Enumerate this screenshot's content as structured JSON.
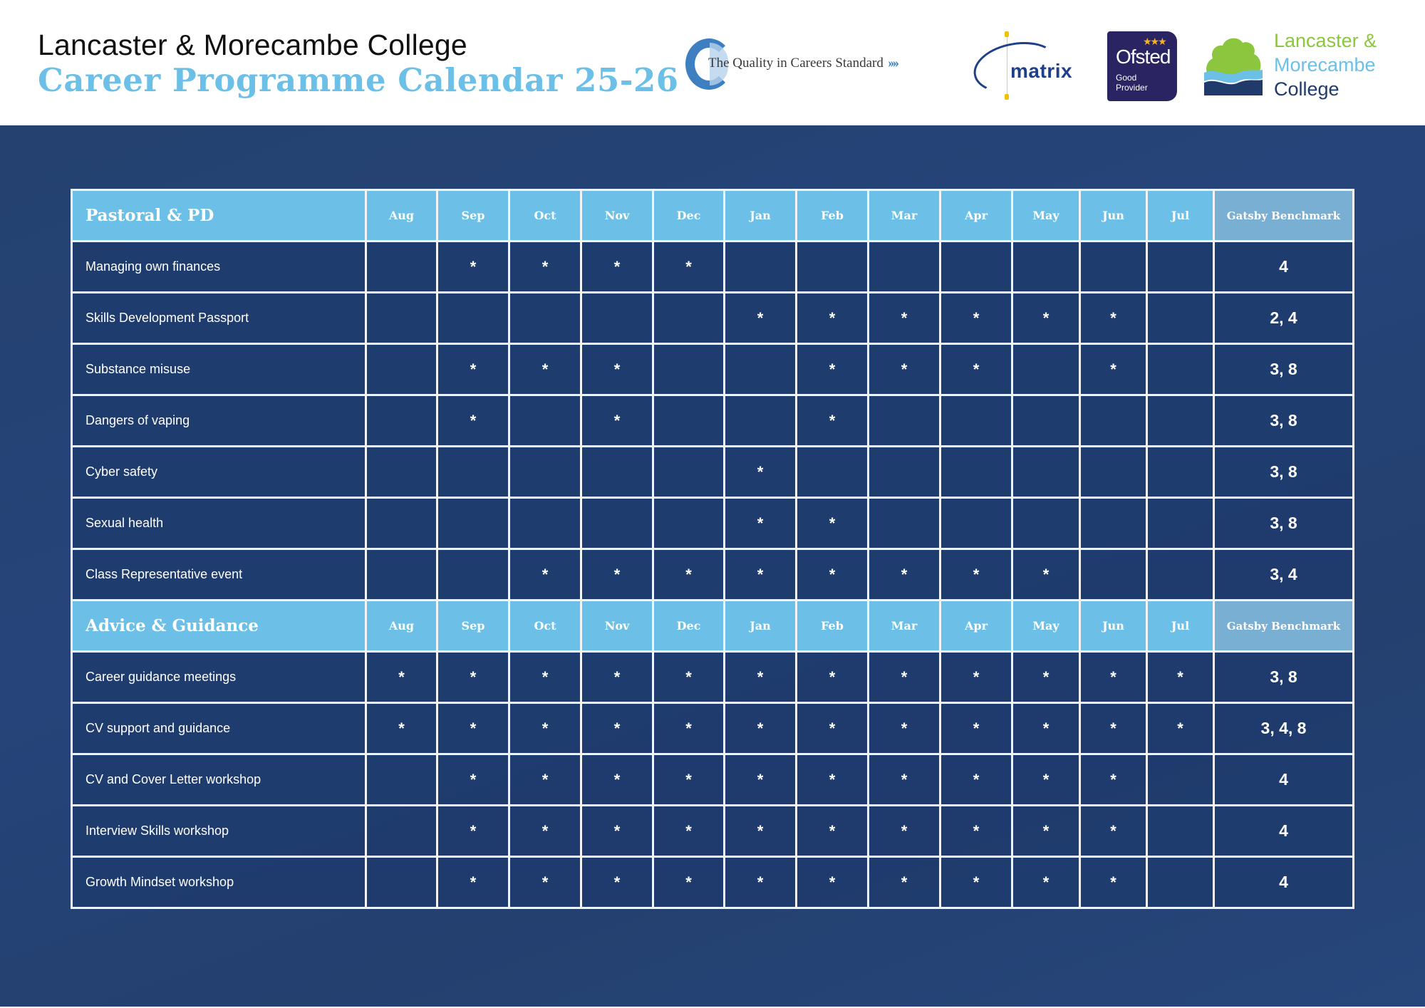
{
  "header": {
    "college_name": "Lancaster & Morecambe College",
    "title": "Career Programme Calendar 25-26"
  },
  "logos": {
    "qics": {
      "text": "The Quality in Careers Standard",
      "arrows": "››››"
    },
    "matrix": {
      "text": "matrix",
      "registered": "®"
    },
    "ofsted": {
      "name": "Ofsted",
      "line1": "Good",
      "line2": "Provider",
      "stars": "★★★"
    },
    "lmc": {
      "line1": "Lancaster &",
      "line2": "Morecambe",
      "line3": "College"
    }
  },
  "colors": {
    "header_accent": "#6cc0e7",
    "section_header_bg": "#6cc0e7",
    "gatsby_header_bg": "#7aafd4",
    "panel_bg": "#24416f",
    "cell_bg": "#1e3a6c",
    "grid_line": "#f2f4f7"
  },
  "months": [
    "Aug",
    "Sep",
    "Oct",
    "Nov",
    "Dec",
    "Jan",
    "Feb",
    "Mar",
    "Apr",
    "May",
    "Jun",
    "Jul"
  ],
  "gatsby_label": "Gatsby Benchmark",
  "mark_symbol": "*",
  "sections": [
    {
      "title": "Pastoral & PD",
      "rows": [
        {
          "activity": "Managing own finances",
          "marks": [
            "",
            "*",
            "*",
            "*",
            "*",
            "",
            "",
            "",
            "",
            "",
            "",
            ""
          ],
          "benchmark": "4"
        },
        {
          "activity": "Skills Development Passport",
          "marks": [
            "",
            "",
            "",
            "",
            "",
            "*",
            "*",
            "*",
            "*",
            "*",
            "*",
            ""
          ],
          "benchmark": "2, 4"
        },
        {
          "activity": "Substance misuse",
          "marks": [
            "",
            "*",
            "*",
            "*",
            "",
            "",
            "*",
            "*",
            "*",
            "",
            "*",
            ""
          ],
          "benchmark": "3, 8"
        },
        {
          "activity": "Dangers of vaping",
          "marks": [
            "",
            "*",
            "",
            "*",
            "",
            "",
            "*",
            "",
            "",
            "",
            "",
            ""
          ],
          "benchmark": "3, 8"
        },
        {
          "activity": "Cyber safety",
          "marks": [
            "",
            "",
            "",
            "",
            "",
            "*",
            "",
            "",
            "",
            "",
            "",
            ""
          ],
          "benchmark": "3, 8"
        },
        {
          "activity": "Sexual health",
          "marks": [
            "",
            "",
            "",
            "",
            "",
            "*",
            "*",
            "",
            "",
            "",
            "",
            ""
          ],
          "benchmark": "3, 8"
        },
        {
          "activity": "Class Representative event",
          "marks": [
            "",
            "",
            "*",
            "*",
            "*",
            "*",
            "*",
            "*",
            "*",
            "*",
            "",
            ""
          ],
          "benchmark": "3, 4"
        }
      ]
    },
    {
      "title": "Advice & Guidance",
      "rows": [
        {
          "activity": "Career guidance meetings",
          "marks": [
            "*",
            "*",
            "*",
            "*",
            "*",
            "*",
            "*",
            "*",
            "*",
            "*",
            "*",
            "*"
          ],
          "benchmark": "3, 8"
        },
        {
          "activity": "CV support and guidance",
          "marks": [
            "*",
            "*",
            "*",
            "*",
            "*",
            "*",
            "*",
            "*",
            "*",
            "*",
            "*",
            "*"
          ],
          "benchmark": "3, 4, 8"
        },
        {
          "activity": "CV and Cover Letter workshop",
          "marks": [
            "",
            "*",
            "*",
            "*",
            "*",
            "*",
            "*",
            "*",
            "*",
            "*",
            "*",
            ""
          ],
          "benchmark": "4"
        },
        {
          "activity": "Interview Skills workshop",
          "marks": [
            "",
            "*",
            "*",
            "*",
            "*",
            "*",
            "*",
            "*",
            "*",
            "*",
            "*",
            ""
          ],
          "benchmark": "4"
        },
        {
          "activity": "Growth Mindset workshop",
          "marks": [
            "",
            "*",
            "*",
            "*",
            "*",
            "*",
            "*",
            "*",
            "*",
            "*",
            "*",
            ""
          ],
          "benchmark": "4"
        }
      ]
    }
  ]
}
